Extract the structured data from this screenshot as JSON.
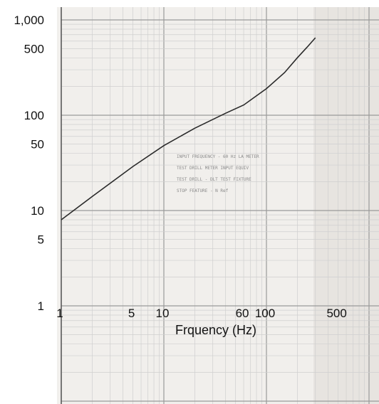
{
  "chart_data": {
    "type": "line",
    "title": "",
    "xlabel": "Frquency (Hz)",
    "ylabel": "",
    "x_scale": "log",
    "y_scale": "log",
    "xlim": [
      1,
      800
    ],
    "ylim": [
      1,
      1000
    ],
    "grid": true,
    "x_ticks": [
      "1",
      "5",
      "10",
      "60",
      "100",
      "500"
    ],
    "y_ticks": [
      "1",
      "5",
      "10",
      "50",
      "100",
      "500",
      "1,000"
    ],
    "series": [
      {
        "x": [
          1,
          2,
          5,
          10,
          20,
          40,
          60,
          100,
          150,
          200,
          250,
          300
        ],
        "y": [
          8,
          14,
          29,
          48,
          73,
          105,
          128,
          190,
          280,
          400,
          520,
          650
        ]
      }
    ]
  },
  "notes": [
    "INPUT FREQUENCY - 60 Hz LA METER",
    "TEST DRILL METER INPUT EQUIV",
    "TEST DRILL - DLT TEST FIXTURE",
    "STOP FEATURE - N Ref"
  ],
  "colors": {
    "paper": "#f1efec",
    "grid_major": "#9a9a9a",
    "grid_minor": "#cfcfcf",
    "curve": "#2a2a2a"
  }
}
